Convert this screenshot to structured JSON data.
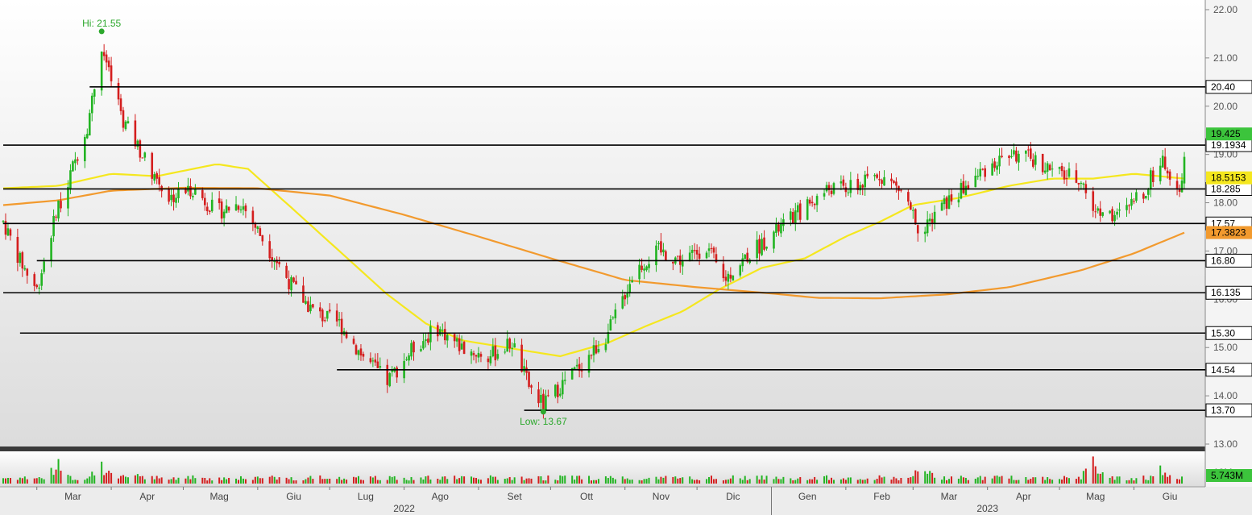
{
  "chart_data": {
    "type": "candlestick",
    "title": "",
    "y_axis": {
      "ticks": [
        "22.00",
        "21.00",
        "20.00",
        "19.00",
        "18.00",
        "17.00",
        "16.00",
        "15.00",
        "14.00",
        "13.00"
      ],
      "ylim": [
        12.95,
        22.2
      ]
    },
    "x_axis": {
      "months": [
        "Mar",
        "Apr",
        "Mag",
        "Giu",
        "Lug",
        "Ago",
        "Set",
        "Ott",
        "Nov",
        "Dic",
        "Gen",
        "Feb",
        "Mar",
        "Apr",
        "Mag",
        "Giu"
      ],
      "years": [
        "2022",
        "2023"
      ],
      "range": [
        "2022-02-15",
        "2023-06-22"
      ]
    },
    "annotations": {
      "high_label": "Hi: 21.55",
      "high_value": 21.55,
      "high_date": "2022-03-28",
      "low_label": "Low: 13.67",
      "low_value": 13.67,
      "low_date": "2022-09-28"
    },
    "levels": [
      {
        "label": "20.40",
        "value": 20.4,
        "from": "2022-03-23"
      },
      {
        "label": "19.1934",
        "value": 19.1934,
        "from": "2022-02-15"
      },
      {
        "label": "18.285",
        "value": 18.285,
        "from": "2022-02-15"
      },
      {
        "label": "17.57",
        "value": 17.57,
        "from": "2022-02-15"
      },
      {
        "label": "16.80",
        "value": 16.8,
        "from": "2022-03-01"
      },
      {
        "label": "16.135",
        "value": 16.135,
        "from": "2022-02-15"
      },
      {
        "label": "15.30",
        "value": 15.3,
        "from": "2022-02-22"
      },
      {
        "label": "14.54",
        "value": 14.54,
        "from": "2022-07-04"
      },
      {
        "label": "13.70",
        "value": 13.7,
        "from": "2022-09-20"
      }
    ],
    "value_labels": [
      {
        "label": "19.425",
        "value": 19.425,
        "color": "#3cc43c"
      },
      {
        "label": "18.5153",
        "value": 18.5153,
        "color": "#f5e71e"
      },
      {
        "label": "17.3823",
        "value": 17.3823,
        "color": "#f29a2e"
      }
    ],
    "moving_averages": [
      {
        "color": "#f5e71e",
        "points": [
          [
            "2022-02-15",
            18.3
          ],
          [
            "2022-03-10",
            18.35
          ],
          [
            "2022-04-01",
            18.6
          ],
          [
            "2022-04-20",
            18.55
          ],
          [
            "2022-05-05",
            18.7
          ],
          [
            "2022-05-15",
            18.8
          ],
          [
            "2022-05-28",
            18.7
          ],
          [
            "2022-06-15",
            17.9
          ],
          [
            "2022-07-05",
            17.0
          ],
          [
            "2022-07-25",
            16.1
          ],
          [
            "2022-08-10",
            15.5
          ],
          [
            "2022-08-25",
            15.15
          ],
          [
            "2022-09-15",
            14.98
          ],
          [
            "2022-10-05",
            14.82
          ],
          [
            "2022-10-25",
            15.1
          ],
          [
            "2022-11-10",
            15.45
          ],
          [
            "2022-11-25",
            15.75
          ],
          [
            "2022-12-10",
            16.2
          ],
          [
            "2022-12-28",
            16.65
          ],
          [
            "2023-01-15",
            16.85
          ],
          [
            "2023-02-01",
            17.3
          ],
          [
            "2023-02-15",
            17.6
          ],
          [
            "2023-03-01",
            17.95
          ],
          [
            "2023-03-20",
            18.1
          ],
          [
            "2023-04-10",
            18.35
          ],
          [
            "2023-04-28",
            18.5
          ],
          [
            "2023-05-15",
            18.5
          ],
          [
            "2023-06-01",
            18.6
          ],
          [
            "2023-06-22",
            18.5
          ]
        ]
      },
      {
        "color": "#f29a2e",
        "points": [
          [
            "2022-02-15",
            17.95
          ],
          [
            "2022-03-10",
            18.05
          ],
          [
            "2022-04-01",
            18.25
          ],
          [
            "2022-05-01",
            18.31
          ],
          [
            "2022-06-01",
            18.3
          ],
          [
            "2022-07-01",
            18.15
          ],
          [
            "2022-08-01",
            17.75
          ],
          [
            "2022-09-01",
            17.3
          ],
          [
            "2022-10-01",
            16.85
          ],
          [
            "2022-11-01",
            16.4
          ],
          [
            "2022-12-01",
            16.25
          ],
          [
            "2023-01-01",
            16.12
          ],
          [
            "2023-01-20",
            16.03
          ],
          [
            "2023-02-15",
            16.02
          ],
          [
            "2023-03-15",
            16.1
          ],
          [
            "2023-04-10",
            16.25
          ],
          [
            "2023-05-10",
            16.6
          ],
          [
            "2023-06-01",
            16.95
          ],
          [
            "2023-06-22",
            17.38
          ]
        ]
      }
    ],
    "price_anchors": [
      [
        "2022-02-15",
        17.6
      ],
      [
        "2022-02-22",
        16.8
      ],
      [
        "2022-03-01",
        16.2
      ],
      [
        "2022-03-08",
        17.6
      ],
      [
        "2022-03-15",
        18.6
      ],
      [
        "2022-03-22",
        19.6
      ],
      [
        "2022-03-28",
        21.2
      ],
      [
        "2022-04-05",
        19.8
      ],
      [
        "2022-04-15",
        18.9
      ],
      [
        "2022-04-25",
        18.1
      ],
      [
        "2022-05-05",
        18.3
      ],
      [
        "2022-05-15",
        17.8
      ],
      [
        "2022-05-25",
        18.0
      ],
      [
        "2022-06-05",
        17.1
      ],
      [
        "2022-06-15",
        16.3
      ],
      [
        "2022-06-25",
        15.7
      ],
      [
        "2022-07-05",
        15.5
      ],
      [
        "2022-07-15",
        14.8
      ],
      [
        "2022-07-25",
        14.3
      ],
      [
        "2022-08-05",
        15.0
      ],
      [
        "2022-08-15",
        15.4
      ],
      [
        "2022-08-25",
        15.0
      ],
      [
        "2022-09-05",
        14.8
      ],
      [
        "2022-09-15",
        15.1
      ],
      [
        "2022-09-22",
        14.2
      ],
      [
        "2022-09-28",
        13.8
      ],
      [
        "2022-10-05",
        14.2
      ],
      [
        "2022-10-15",
        14.7
      ],
      [
        "2022-10-25",
        15.3
      ],
      [
        "2022-11-05",
        16.6
      ],
      [
        "2022-11-15",
        17.0
      ],
      [
        "2022-11-25",
        16.8
      ],
      [
        "2022-12-05",
        17.1
      ],
      [
        "2022-12-12",
        16.4
      ],
      [
        "2022-12-22",
        16.9
      ],
      [
        "2023-01-05",
        17.5
      ],
      [
        "2023-01-15",
        17.9
      ],
      [
        "2023-01-25",
        18.3
      ],
      [
        "2023-02-05",
        18.3
      ],
      [
        "2023-02-15",
        18.6
      ],
      [
        "2023-02-25",
        18.2
      ],
      [
        "2023-03-05",
        17.3
      ],
      [
        "2023-03-10",
        17.8
      ],
      [
        "2023-03-20",
        18.2
      ],
      [
        "2023-03-31",
        18.7
      ],
      [
        "2023-04-10",
        19.0
      ],
      [
        "2023-04-20",
        18.9
      ],
      [
        "2023-04-30",
        18.6
      ],
      [
        "2023-05-10",
        18.5
      ],
      [
        "2023-05-15",
        17.9
      ],
      [
        "2023-05-25",
        17.7
      ],
      [
        "2023-06-05",
        18.2
      ],
      [
        "2023-06-12",
        18.9
      ],
      [
        "2023-06-20",
        18.4
      ],
      [
        "2023-06-22",
        18.4
      ]
    ],
    "last_bar": {
      "date": "2023-06-22",
      "open": 18.4,
      "high": 19.05,
      "low": 18.3,
      "close": 18.95
    },
    "volume": {
      "label": "5.743M",
      "tick": "10M",
      "spikes": [
        [
          "2022-03-10",
          9.5
        ],
        [
          "2022-03-28",
          8.5
        ],
        [
          "2022-04-10",
          6.0
        ],
        [
          "2023-03-05",
          8.0
        ],
        [
          "2023-05-15",
          10.5
        ],
        [
          "2023-06-12",
          7.0
        ]
      ]
    }
  }
}
